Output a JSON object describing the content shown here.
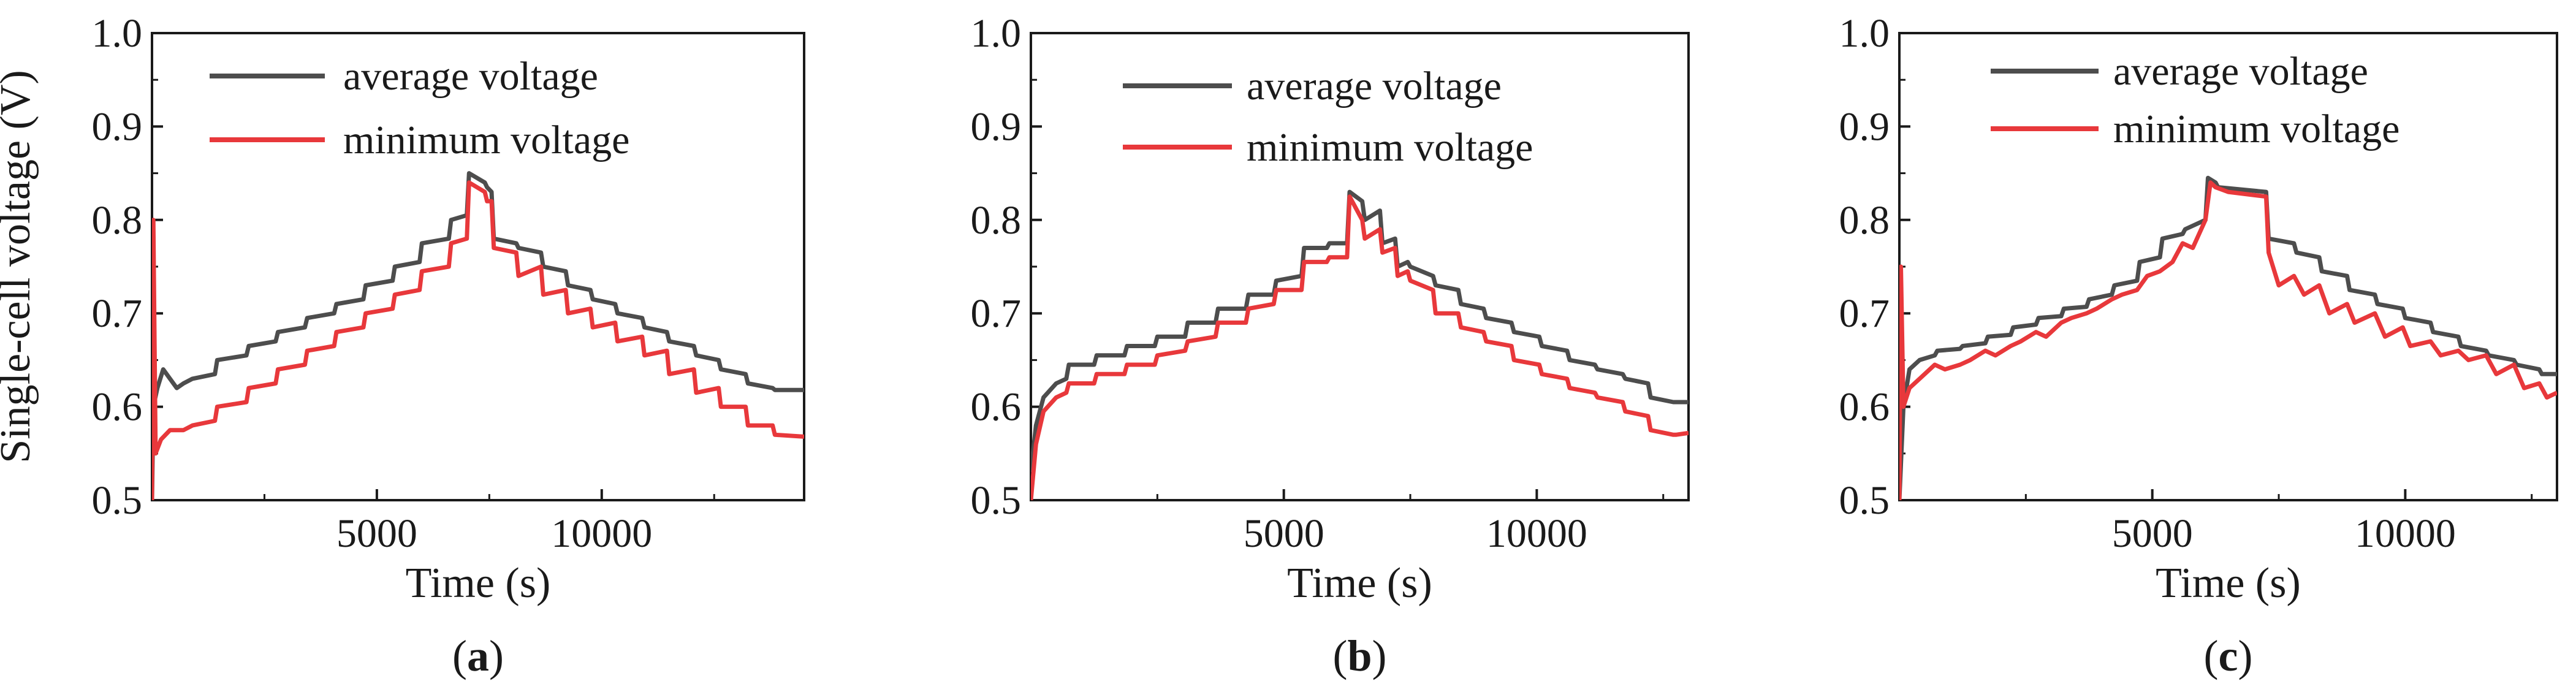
{
  "chart_data": [
    {
      "type": "line",
      "panel_label": "(a)",
      "xlabel": "Time (s)",
      "ylabel": "Single-cell voltage (V)",
      "xlim": [
        0,
        14500
      ],
      "ylim": [
        0.5,
        1.0
      ],
      "x_ticks": [
        "5000",
        "10000"
      ],
      "y_ticks": [
        "0.5",
        "0.6",
        "0.7",
        "0.8",
        "0.9",
        "1.0"
      ],
      "legend": [
        "average voltage",
        "minimum voltage"
      ],
      "series": [
        {
          "name": "average voltage",
          "color": "#4d4d4d",
          "x": [
            0,
            30,
            120,
            250,
            400,
            550,
            700,
            900,
            1400,
            1450,
            2100,
            2150,
            2750,
            2800,
            3400,
            3450,
            4050,
            4100,
            4700,
            4750,
            5350,
            5400,
            5950,
            6000,
            6600,
            6650,
            7000,
            7050,
            7400,
            7450,
            7550,
            7600,
            8100,
            8150,
            8650,
            8700,
            9200,
            9250,
            9750,
            9800,
            10300,
            10350,
            10900,
            10950,
            11450,
            11500,
            12050,
            12100,
            12600,
            12650,
            13200,
            13250,
            13800,
            13850,
            14500
          ],
          "values": [
            0.5,
            0.6,
            0.62,
            0.64,
            0.63,
            0.62,
            0.625,
            0.63,
            0.635,
            0.65,
            0.655,
            0.665,
            0.67,
            0.68,
            0.685,
            0.695,
            0.7,
            0.71,
            0.715,
            0.73,
            0.735,
            0.75,
            0.755,
            0.775,
            0.78,
            0.8,
            0.805,
            0.85,
            0.84,
            0.835,
            0.83,
            0.78,
            0.775,
            0.77,
            0.765,
            0.75,
            0.745,
            0.73,
            0.725,
            0.715,
            0.71,
            0.7,
            0.695,
            0.685,
            0.68,
            0.67,
            0.665,
            0.655,
            0.65,
            0.64,
            0.635,
            0.625,
            0.62,
            0.618,
            0.618
          ]
        },
        {
          "name": "minimum voltage",
          "color": "#e8383b",
          "x": [
            0,
            30,
            80,
            200,
            400,
            700,
            900,
            1400,
            1450,
            2100,
            2150,
            2750,
            2800,
            3400,
            3450,
            4050,
            4100,
            4700,
            4750,
            5350,
            5400,
            5950,
            6000,
            6600,
            6650,
            7000,
            7050,
            7400,
            7450,
            7550,
            7600,
            8100,
            8150,
            8650,
            8700,
            9200,
            9250,
            9750,
            9800,
            10300,
            10350,
            10900,
            10950,
            11450,
            11500,
            12050,
            12100,
            12600,
            12650,
            13200,
            13250,
            13800,
            13850,
            14500
          ],
          "values": [
            0.5,
            0.8,
            0.55,
            0.565,
            0.575,
            0.575,
            0.58,
            0.585,
            0.6,
            0.605,
            0.62,
            0.625,
            0.64,
            0.645,
            0.66,
            0.665,
            0.68,
            0.685,
            0.7,
            0.705,
            0.72,
            0.725,
            0.745,
            0.75,
            0.775,
            0.78,
            0.84,
            0.83,
            0.82,
            0.82,
            0.77,
            0.765,
            0.74,
            0.75,
            0.72,
            0.725,
            0.7,
            0.705,
            0.685,
            0.69,
            0.67,
            0.675,
            0.655,
            0.66,
            0.635,
            0.64,
            0.615,
            0.62,
            0.6,
            0.6,
            0.58,
            0.58,
            0.57,
            0.568
          ]
        }
      ]
    },
    {
      "type": "line",
      "panel_label": "(b)",
      "xlabel": "Time (s)",
      "ylabel": "",
      "xlim": [
        0,
        13000
      ],
      "ylim": [
        0.5,
        1.0
      ],
      "x_ticks": [
        "5000",
        "10000"
      ],
      "y_ticks": [
        "0.5",
        "0.6",
        "0.7",
        "0.8",
        "0.9",
        "1.0"
      ],
      "legend": [
        "average voltage",
        "minimum voltage"
      ],
      "series": [
        {
          "name": "average voltage",
          "color": "#4d4d4d",
          "x": [
            0,
            100,
            250,
            500,
            700,
            750,
            1250,
            1300,
            1850,
            1900,
            2450,
            2500,
            3050,
            3100,
            3650,
            3700,
            4250,
            4300,
            4800,
            4850,
            5350,
            5400,
            5850,
            5900,
            6250,
            6300,
            6550,
            6600,
            6900,
            6950,
            7200,
            7250,
            7450,
            7500,
            7950,
            8000,
            8450,
            8500,
            8950,
            9000,
            9500,
            9550,
            10050,
            10100,
            10600,
            10650,
            11150,
            11200,
            11700,
            11750,
            12200,
            12250,
            12700,
            12750,
            13000
          ],
          "values": [
            0.53,
            0.58,
            0.61,
            0.625,
            0.63,
            0.645,
            0.645,
            0.655,
            0.655,
            0.665,
            0.665,
            0.675,
            0.675,
            0.69,
            0.69,
            0.705,
            0.705,
            0.72,
            0.72,
            0.735,
            0.74,
            0.77,
            0.77,
            0.775,
            0.775,
            0.83,
            0.82,
            0.8,
            0.81,
            0.775,
            0.78,
            0.75,
            0.755,
            0.75,
            0.74,
            0.73,
            0.725,
            0.71,
            0.705,
            0.695,
            0.69,
            0.68,
            0.675,
            0.665,
            0.66,
            0.65,
            0.645,
            0.64,
            0.635,
            0.63,
            0.625,
            0.61,
            0.605,
            0.605,
            0.605
          ]
        },
        {
          "name": "minimum voltage",
          "color": "#e8383b",
          "x": [
            0,
            100,
            250,
            500,
            700,
            750,
            1250,
            1300,
            1850,
            1900,
            2450,
            2500,
            3050,
            3100,
            3650,
            3700,
            4250,
            4300,
            4800,
            4850,
            5350,
            5400,
            5850,
            5900,
            6250,
            6300,
            6550,
            6600,
            6900,
            6950,
            7200,
            7250,
            7450,
            7500,
            7950,
            8000,
            8450,
            8500,
            8950,
            9000,
            9500,
            9550,
            10050,
            10100,
            10600,
            10650,
            11150,
            11200,
            11700,
            11750,
            12200,
            12250,
            12700,
            12750,
            13000
          ],
          "values": [
            0.5,
            0.56,
            0.595,
            0.61,
            0.615,
            0.625,
            0.625,
            0.635,
            0.635,
            0.645,
            0.645,
            0.655,
            0.66,
            0.67,
            0.675,
            0.69,
            0.69,
            0.705,
            0.71,
            0.725,
            0.725,
            0.755,
            0.755,
            0.76,
            0.76,
            0.825,
            0.8,
            0.78,
            0.79,
            0.765,
            0.77,
            0.74,
            0.745,
            0.735,
            0.725,
            0.7,
            0.7,
            0.685,
            0.68,
            0.67,
            0.665,
            0.65,
            0.645,
            0.635,
            0.63,
            0.62,
            0.615,
            0.61,
            0.605,
            0.595,
            0.59,
            0.575,
            0.57,
            0.57,
            0.572
          ]
        }
      ]
    },
    {
      "type": "line",
      "panel_label": "(c)",
      "xlabel": "Time (s)",
      "ylabel": "",
      "xlim": [
        0,
        13000
      ],
      "ylim": [
        0.5,
        1.0
      ],
      "x_ticks": [
        "5000",
        "10000"
      ],
      "y_ticks": [
        "0.5",
        "0.6",
        "0.7",
        "0.8",
        "0.9",
        "1.0"
      ],
      "legend": [
        "average voltage",
        "minimum voltage"
      ],
      "series": [
        {
          "name": "average voltage",
          "color": "#4d4d4d",
          "x": [
            0,
            80,
            200,
            400,
            700,
            750,
            1200,
            1250,
            1700,
            1750,
            2200,
            2250,
            2700,
            2750,
            3200,
            3250,
            3700,
            3750,
            4200,
            4250,
            4700,
            4750,
            5150,
            5200,
            5600,
            5650,
            6050,
            6100,
            6250,
            6300,
            7250,
            7300,
            7800,
            7850,
            8300,
            8350,
            8850,
            8900,
            9400,
            9450,
            9950,
            10000,
            10500,
            10550,
            11050,
            11100,
            11600,
            11650,
            12150,
            12200,
            12650,
            12700,
            13000
          ],
          "values": [
            0.5,
            0.6,
            0.64,
            0.65,
            0.655,
            0.66,
            0.662,
            0.665,
            0.668,
            0.675,
            0.677,
            0.685,
            0.688,
            0.695,
            0.697,
            0.705,
            0.707,
            0.715,
            0.72,
            0.73,
            0.735,
            0.755,
            0.76,
            0.78,
            0.785,
            0.79,
            0.8,
            0.845,
            0.84,
            0.835,
            0.83,
            0.78,
            0.775,
            0.765,
            0.76,
            0.745,
            0.74,
            0.725,
            0.72,
            0.71,
            0.705,
            0.695,
            0.69,
            0.68,
            0.675,
            0.665,
            0.66,
            0.655,
            0.65,
            0.645,
            0.64,
            0.635,
            0.635
          ]
        },
        {
          "name": "minimum voltage",
          "color": "#e8383b",
          "x": [
            0,
            30,
            80,
            200,
            400,
            700,
            900,
            1200,
            1400,
            1700,
            1900,
            2200,
            2400,
            2700,
            2900,
            3200,
            3400,
            3700,
            3900,
            4200,
            4400,
            4700,
            4900,
            5150,
            5400,
            5600,
            5800,
            6050,
            6150,
            6250,
            6500,
            7250,
            7300,
            7500,
            7800,
            8000,
            8300,
            8500,
            8850,
            9000,
            9400,
            9600,
            9950,
            10100,
            10500,
            10700,
            11050,
            11250,
            11600,
            11800,
            12150,
            12350,
            12650,
            12800,
            13000
          ],
          "values": [
            0.5,
            0.75,
            0.6,
            0.62,
            0.63,
            0.645,
            0.64,
            0.645,
            0.65,
            0.66,
            0.655,
            0.665,
            0.67,
            0.68,
            0.675,
            0.69,
            0.695,
            0.7,
            0.705,
            0.715,
            0.72,
            0.725,
            0.74,
            0.745,
            0.755,
            0.775,
            0.77,
            0.8,
            0.84,
            0.835,
            0.83,
            0.825,
            0.765,
            0.73,
            0.74,
            0.72,
            0.73,
            0.7,
            0.71,
            0.69,
            0.7,
            0.675,
            0.685,
            0.665,
            0.67,
            0.655,
            0.66,
            0.65,
            0.655,
            0.635,
            0.645,
            0.62,
            0.625,
            0.61,
            0.615
          ]
        }
      ]
    }
  ]
}
